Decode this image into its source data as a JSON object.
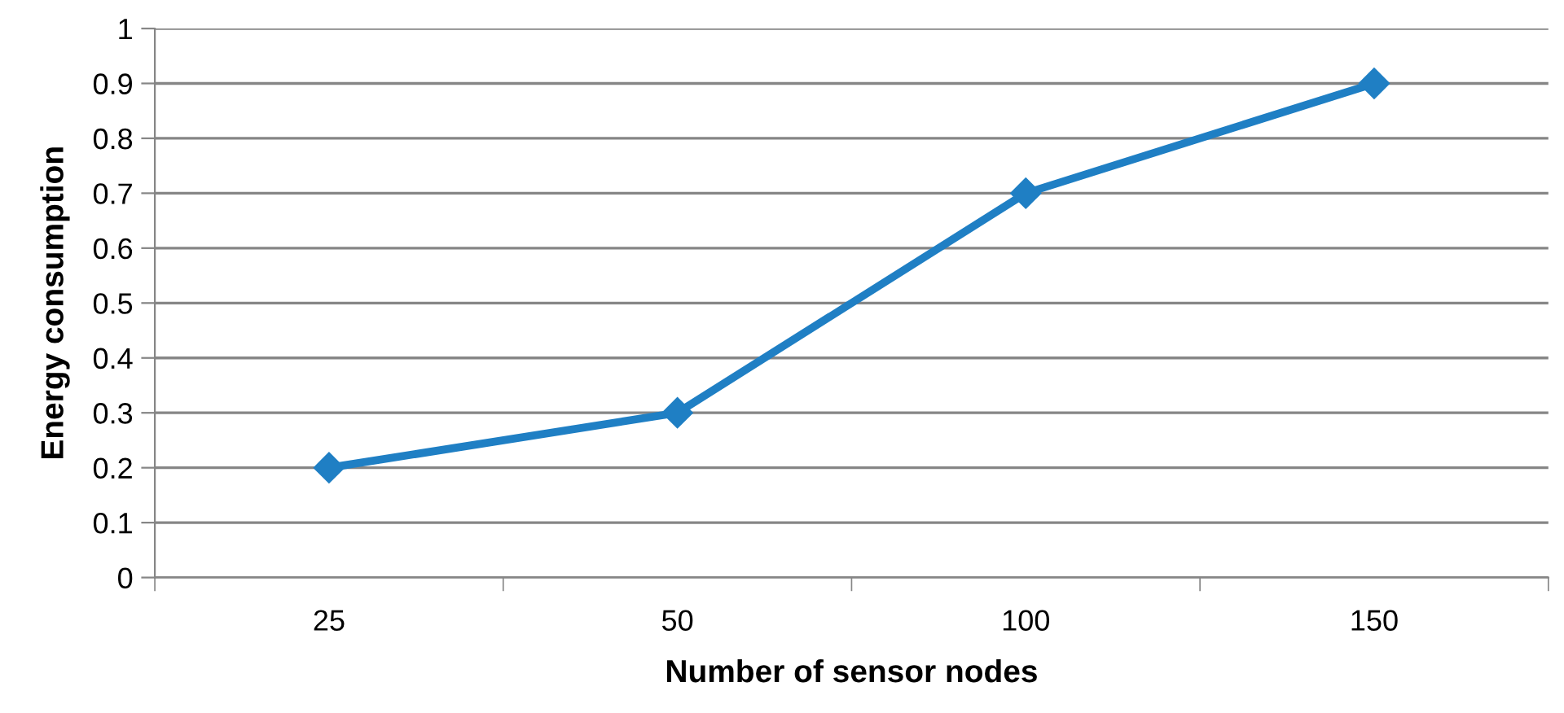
{
  "chart_data": {
    "type": "line",
    "xlabel": "Number of sensor nodes",
    "ylabel": "Energy consumption",
    "categories": [
      "25",
      "50",
      "100",
      "150"
    ],
    "series": [
      {
        "color": "#1f7fc4",
        "values": [
          0.2,
          0.3,
          0.7,
          0.9
        ]
      }
    ],
    "ylim": [
      0,
      1
    ],
    "yticks": [
      0,
      0.1,
      0.2,
      0.3,
      0.4,
      0.5,
      0.6,
      0.7,
      0.8,
      0.9,
      1
    ],
    "grid": "y",
    "marker": "diamond",
    "line_style": "solid"
  }
}
